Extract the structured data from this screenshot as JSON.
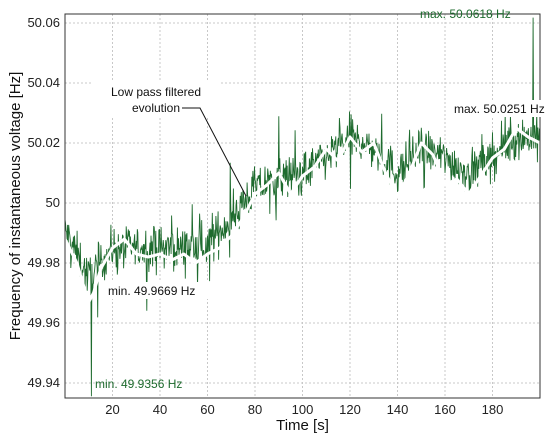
{
  "chart_data": {
    "type": "line",
    "title": "",
    "xlabel": "Time [s]",
    "ylabel": "Frequency of instantaneous voltage [Hz]",
    "xlim": [
      0,
      200
    ],
    "ylim": [
      49.935,
      50.063
    ],
    "xticks": [
      20,
      40,
      60,
      80,
      100,
      120,
      140,
      160,
      180
    ],
    "yticks": [
      49.94,
      49.96,
      49.98,
      50,
      50.02,
      50.04,
      50.06
    ],
    "ytick_labels": [
      "49.94",
      "49.96",
      "49.98",
      "50",
      "50.02",
      "50.04",
      "50.06"
    ],
    "grid": true,
    "colors": {
      "raw": "#1e6b2e",
      "filtered": "#ffffff",
      "annotation_green": "#1e6b2e"
    },
    "series": [
      {
        "key": "raw",
        "style": "noisy band",
        "x": [
          0,
          10,
          20,
          30,
          40,
          50,
          60,
          70,
          80,
          90,
          100,
          110,
          120,
          130,
          140,
          150,
          160,
          170,
          180,
          190,
          200
        ],
        "center": [
          49.991,
          49.975,
          49.985,
          49.985,
          49.985,
          49.985,
          49.986,
          49.995,
          50.005,
          50.008,
          50.01,
          50.015,
          50.022,
          50.018,
          50.01,
          50.018,
          50.015,
          50.01,
          50.015,
          50.022,
          50.022
        ],
        "max": 50.0618,
        "min": 49.9356
      },
      {
        "key": "filtered",
        "x": [
          0,
          5,
          8,
          10,
          12,
          15,
          20,
          25,
          30,
          35,
          40,
          45,
          50,
          55,
          60,
          65,
          70,
          75,
          80,
          85,
          90,
          95,
          100,
          105,
          110,
          115,
          120,
          125,
          130,
          135,
          140,
          145,
          150,
          155,
          160,
          165,
          170,
          175,
          180,
          185,
          190,
          195,
          200
        ],
        "y": [
          49.988,
          49.98,
          49.972,
          49.967,
          49.97,
          49.978,
          49.985,
          49.988,
          49.983,
          49.982,
          49.983,
          49.981,
          49.983,
          49.98,
          49.983,
          49.985,
          49.989,
          49.995,
          50.003,
          50.006,
          50.01,
          50.003,
          50.009,
          50.012,
          50.018,
          50.014,
          50.022,
          50.017,
          50.02,
          50.01,
          50.002,
          50.01,
          50.02,
          50.016,
          50.006,
          50.008,
          50.003,
          50.009,
          50.015,
          50.018,
          50.025,
          50.022,
          50.02
        ]
      }
    ],
    "annotations": {
      "raw_max": "max. 50.0618 Hz",
      "raw_min": "min. 49.9356 Hz",
      "filtered_max": "max. 50.0251 Hz",
      "filtered_min": "min. 49.9669 Hz",
      "filtered_label_line1": "Low pass filtered",
      "filtered_label_line2": "evolution"
    }
  }
}
